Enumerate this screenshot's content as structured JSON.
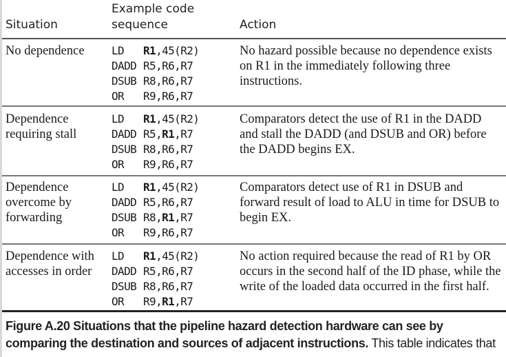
{
  "headers": {
    "situation": "Situation",
    "code_line1": "Example code",
    "code_line2": "sequence",
    "action": "Action"
  },
  "rows": [
    {
      "situation": "No dependence",
      "code": [
        {
          "op": "LD",
          "args": [
            {
              "t": "R1",
              "b": true
            },
            {
              "t": ",45(R2)",
              "b": false
            }
          ]
        },
        {
          "op": "DADD",
          "args": [
            {
              "t": "R5,R6,R7",
              "b": false
            }
          ]
        },
        {
          "op": "DSUB",
          "args": [
            {
              "t": "R8,R6,R7",
              "b": false
            }
          ]
        },
        {
          "op": "OR",
          "args": [
            {
              "t": "R9,R6,R7",
              "b": false
            }
          ]
        }
      ],
      "action": "No hazard possible because no dependence exists on R1 in the immediately following three instructions."
    },
    {
      "situation": "Dependence requiring stall",
      "code": [
        {
          "op": "LD",
          "args": [
            {
              "t": "R1",
              "b": true
            },
            {
              "t": ",45(R2)",
              "b": false
            }
          ]
        },
        {
          "op": "DADD",
          "args": [
            {
              "t": "R5,",
              "b": false
            },
            {
              "t": "R1",
              "b": true
            },
            {
              "t": ",R7",
              "b": false
            }
          ]
        },
        {
          "op": "DSUB",
          "args": [
            {
              "t": "R8,R6,R7",
              "b": false
            }
          ]
        },
        {
          "op": "OR",
          "args": [
            {
              "t": "R9,R6,R7",
              "b": false
            }
          ]
        }
      ],
      "action": "Comparators detect the use of R1 in the DADD and stall the DADD (and DSUB and OR) before the DADD begins EX."
    },
    {
      "situation": "Dependence overcome by forwarding",
      "code": [
        {
          "op": "LD",
          "args": [
            {
              "t": "R1",
              "b": true
            },
            {
              "t": ",45(R2)",
              "b": false
            }
          ]
        },
        {
          "op": "DADD",
          "args": [
            {
              "t": "R5,R6,R7",
              "b": false
            }
          ]
        },
        {
          "op": "DSUB",
          "args": [
            {
              "t": "R8,",
              "b": false
            },
            {
              "t": "R1",
              "b": true
            },
            {
              "t": ",R7",
              "b": false
            }
          ]
        },
        {
          "op": "OR",
          "args": [
            {
              "t": "R9,R6,R7",
              "b": false
            }
          ]
        }
      ],
      "action": "Comparators detect use of R1 in DSUB and forward result of load to ALU in time for DSUB to begin EX."
    },
    {
      "situation": "Dependence with accesses in order",
      "code": [
        {
          "op": "LD",
          "args": [
            {
              "t": "R1",
              "b": true
            },
            {
              "t": ",45(R2)",
              "b": false
            }
          ]
        },
        {
          "op": "DADD",
          "args": [
            {
              "t": "R5,R6,R7",
              "b": false
            }
          ]
        },
        {
          "op": "DSUB",
          "args": [
            {
              "t": "R8,R6,R7",
              "b": false
            }
          ]
        },
        {
          "op": "OR",
          "args": [
            {
              "t": "R9,",
              "b": false
            },
            {
              "t": "R1",
              "b": true
            },
            {
              "t": ",R7",
              "b": false
            }
          ]
        }
      ],
      "action": "No action required because the read of R1 by OR occurs in the second half of the ID phase, while the write of the loaded data occurred in the first half."
    }
  ],
  "caption": {
    "label": "Figure A.20",
    "bold_text": "Situations that the pipeline hazard detection hardware can see by comparing the destination and sources of adjacent instructions.",
    "text": "This table indicates that"
  }
}
